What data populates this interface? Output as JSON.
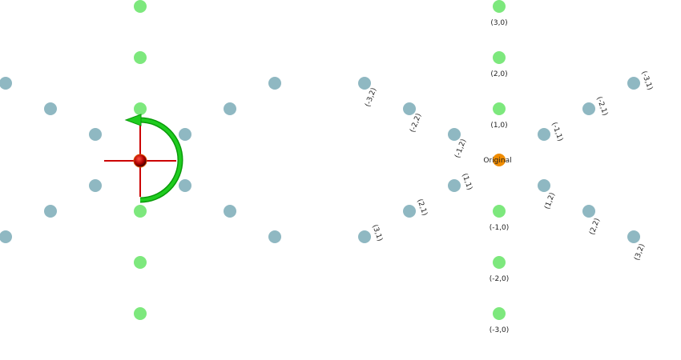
{
  "colors": {
    "axis_point": "#7de87d",
    "lattice_point": "#8fb8c2",
    "origin_point": "#f08c00",
    "rotation_arrow": "#1fcc1f",
    "crosshair": "#cc0000",
    "pivot": "#cc1100"
  },
  "left_panel": {
    "icons": [
      "rotation-arrow-icon",
      "crosshair-icon",
      "pivot-sphere-icon"
    ]
  },
  "right_panel": {
    "origin_label": "Original",
    "points": [
      {
        "label": "(3,0)",
        "n": 3,
        "branch": "up"
      },
      {
        "label": "(2,0)",
        "n": 2,
        "branch": "up"
      },
      {
        "label": "(1,0)",
        "n": 1,
        "branch": "up"
      },
      {
        "label": "(-1,0)",
        "n": 1,
        "branch": "down"
      },
      {
        "label": "(-2,0)",
        "n": 2,
        "branch": "down"
      },
      {
        "label": "(-3,0)",
        "n": 3,
        "branch": "down"
      },
      {
        "label": "(-1,2)",
        "n": 1,
        "branch": "upleft"
      },
      {
        "label": "(-2,2)",
        "n": 2,
        "branch": "upleft"
      },
      {
        "label": "(-3,2)",
        "n": 3,
        "branch": "upleft"
      },
      {
        "label": "(-1,1)",
        "n": 1,
        "branch": "upright"
      },
      {
        "label": "(-2,1)",
        "n": 2,
        "branch": "upright"
      },
      {
        "label": "(-3,1)",
        "n": 3,
        "branch": "upright"
      },
      {
        "label": "(1,1)",
        "n": 1,
        "branch": "downleft"
      },
      {
        "label": "(2,1)",
        "n": 2,
        "branch": "downleft"
      },
      {
        "label": "(3,1)",
        "n": 3,
        "branch": "downleft"
      },
      {
        "label": "(1,2)",
        "n": 1,
        "branch": "downright"
      },
      {
        "label": "(2,2)",
        "n": 2,
        "branch": "downright"
      },
      {
        "label": "(3,2)",
        "n": 3,
        "branch": "downright"
      }
    ]
  }
}
